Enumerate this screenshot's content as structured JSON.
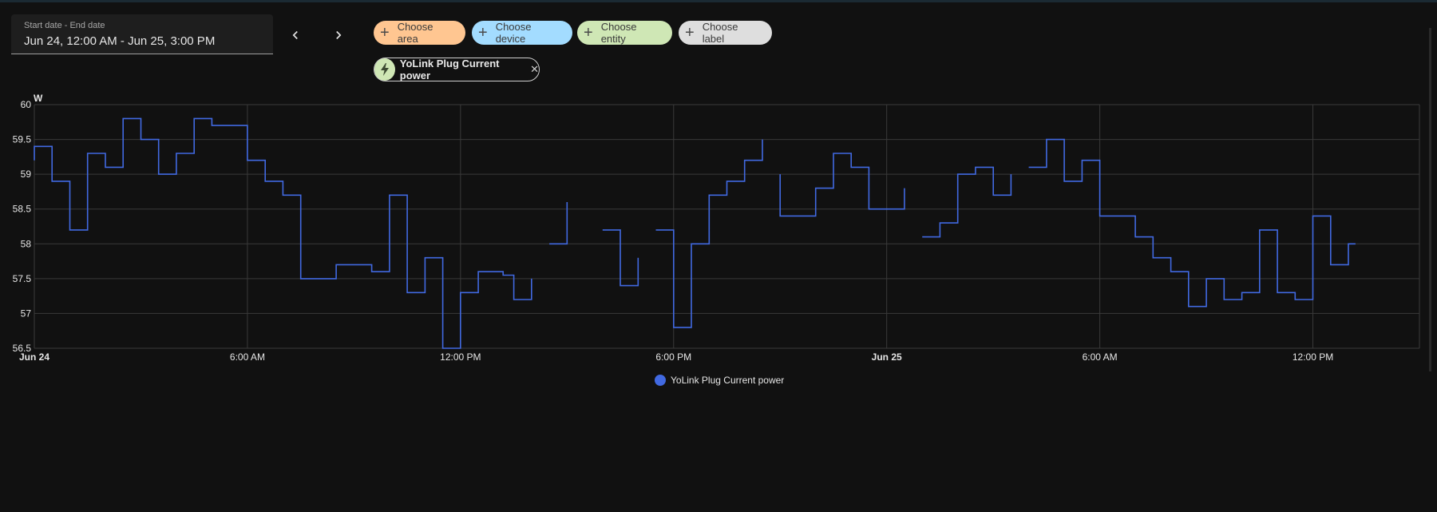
{
  "date_picker": {
    "label": "Start date - End date",
    "value": "Jun 24, 12:00 AM - Jun 25, 3:00 PM"
  },
  "nav": {
    "prev_icon": "chevron-left-icon",
    "next_icon": "chevron-right-icon"
  },
  "target_chips": [
    {
      "label": "Choose area",
      "icon": "plus-icon",
      "color": "#ffc691"
    },
    {
      "label": "Choose device",
      "icon": "plus-icon",
      "color": "#a3dcff"
    },
    {
      "label": "Choose entity",
      "icon": "plus-icon",
      "color": "#cfe7b5"
    },
    {
      "label": "Choose label",
      "icon": "plus-icon",
      "color": "#dedede"
    }
  ],
  "selected_entity": {
    "name": "YoLink Plug Current power",
    "icon": "lightning-bolt-icon",
    "close_icon": "close-icon"
  },
  "chart_data": {
    "type": "line",
    "step": true,
    "ylabel": "W",
    "ylim": [
      56.5,
      60
    ],
    "yticks": [
      "60",
      "59.5",
      "59",
      "58.5",
      "58",
      "57.5",
      "57",
      "56.5"
    ],
    "xlim": [
      0,
      39
    ],
    "xticks": [
      {
        "x": 0,
        "label": "Jun 24",
        "bold": true
      },
      {
        "x": 6,
        "label": "6:00 AM",
        "bold": false
      },
      {
        "x": 12,
        "label": "12:00 PM",
        "bold": false
      },
      {
        "x": 18,
        "label": "6:00 PM",
        "bold": false
      },
      {
        "x": 24,
        "label": "Jun 25",
        "bold": true
      },
      {
        "x": 30,
        "label": "6:00 AM",
        "bold": false
      },
      {
        "x": 36,
        "label": "12:00 PM",
        "bold": false
      }
    ],
    "grid": true,
    "color": "#4169e1",
    "series": [
      {
        "name": "YoLink Plug Current power",
        "segments": [
          [
            [
              0,
              59.2
            ],
            [
              0,
              59.4
            ],
            [
              0.5,
              59.4
            ],
            [
              0.5,
              58.9
            ],
            [
              1.0,
              58.9
            ],
            [
              1.0,
              58.2
            ],
            [
              1.5,
              58.2
            ],
            [
              1.5,
              59.3
            ],
            [
              2.0,
              59.3
            ],
            [
              2.0,
              59.1
            ],
            [
              2.5,
              59.1
            ],
            [
              2.5,
              59.8
            ],
            [
              3.0,
              59.8
            ],
            [
              3.0,
              59.5
            ],
            [
              3.5,
              59.5
            ],
            [
              3.5,
              59.0
            ],
            [
              4.0,
              59.0
            ],
            [
              4.0,
              59.3
            ],
            [
              4.5,
              59.3
            ],
            [
              4.5,
              59.8
            ],
            [
              5.0,
              59.8
            ],
            [
              5.0,
              59.7
            ],
            [
              6.0,
              59.7
            ],
            [
              6.0,
              59.2
            ],
            [
              6.5,
              59.2
            ],
            [
              6.5,
              58.9
            ],
            [
              7.0,
              58.9
            ],
            [
              7.0,
              58.7
            ],
            [
              7.5,
              58.7
            ],
            [
              7.5,
              57.5
            ],
            [
              8.5,
              57.5
            ],
            [
              8.5,
              57.7
            ],
            [
              9.5,
              57.7
            ],
            [
              9.5,
              57.6
            ],
            [
              10.0,
              57.6
            ],
            [
              10.0,
              58.7
            ],
            [
              10.5,
              58.7
            ],
            [
              10.5,
              57.3
            ],
            [
              11.0,
              57.3
            ],
            [
              11.0,
              57.8
            ],
            [
              11.5,
              57.8
            ],
            [
              11.5,
              56.5
            ],
            [
              12.0,
              56.5
            ],
            [
              12.0,
              57.3
            ],
            [
              12.5,
              57.3
            ],
            [
              12.5,
              57.6
            ],
            [
              13.2,
              57.6
            ],
            [
              13.2,
              57.55
            ],
            [
              13.5,
              57.55
            ],
            [
              13.5,
              57.2
            ],
            [
              14.0,
              57.2
            ],
            [
              14.0,
              57.5
            ]
          ],
          [
            [
              14.5,
              58.0
            ],
            [
              15.0,
              58.0
            ],
            [
              15.0,
              58.6
            ]
          ],
          [
            [
              16.0,
              58.2
            ],
            [
              16.5,
              58.2
            ],
            [
              16.5,
              57.4
            ],
            [
              17.0,
              57.4
            ],
            [
              17.0,
              57.8
            ]
          ],
          [
            [
              17.5,
              58.2
            ],
            [
              18.0,
              58.2
            ],
            [
              18.0,
              56.8
            ],
            [
              18.5,
              56.8
            ],
            [
              18.5,
              58.0
            ],
            [
              19.0,
              58.0
            ],
            [
              19.0,
              58.7
            ],
            [
              19.5,
              58.7
            ],
            [
              19.5,
              58.9
            ],
            [
              20.0,
              58.9
            ],
            [
              20.0,
              59.2
            ],
            [
              20.5,
              59.2
            ],
            [
              20.5,
              59.5
            ]
          ],
          [
            [
              21.0,
              59.0
            ],
            [
              21.0,
              58.4
            ],
            [
              22.0,
              58.4
            ],
            [
              22.0,
              58.8
            ],
            [
              22.5,
              58.8
            ],
            [
              22.5,
              59.3
            ],
            [
              23.0,
              59.3
            ],
            [
              23.0,
              59.1
            ],
            [
              23.5,
              59.1
            ],
            [
              23.5,
              58.5
            ],
            [
              24.5,
              58.5
            ],
            [
              24.5,
              58.8
            ]
          ],
          [
            [
              25.0,
              58.1
            ],
            [
              25.5,
              58.1
            ],
            [
              25.5,
              58.3
            ],
            [
              26.0,
              58.3
            ],
            [
              26.0,
              59.0
            ],
            [
              26.5,
              59.0
            ],
            [
              26.5,
              59.1
            ],
            [
              27.0,
              59.1
            ],
            [
              27.0,
              58.7
            ],
            [
              27.5,
              58.7
            ],
            [
              27.5,
              59.0
            ]
          ],
          [
            [
              28.0,
              59.1
            ],
            [
              28.5,
              59.1
            ],
            [
              28.5,
              59.5
            ],
            [
              29.0,
              59.5
            ],
            [
              29.0,
              58.9
            ],
            [
              29.5,
              58.9
            ],
            [
              29.5,
              59.2
            ],
            [
              30.0,
              59.2
            ],
            [
              30.0,
              58.4
            ],
            [
              31.0,
              58.4
            ],
            [
              31.0,
              58.1
            ],
            [
              31.5,
              58.1
            ],
            [
              31.5,
              57.8
            ],
            [
              32.0,
              57.8
            ],
            [
              32.0,
              57.6
            ],
            [
              32.5,
              57.6
            ],
            [
              32.5,
              57.1
            ],
            [
              33.0,
              57.1
            ],
            [
              33.0,
              57.5
            ],
            [
              33.5,
              57.5
            ],
            [
              33.5,
              57.2
            ],
            [
              34.0,
              57.2
            ],
            [
              34.0,
              57.3
            ],
            [
              34.5,
              57.3
            ],
            [
              34.5,
              58.2
            ],
            [
              35.0,
              58.2
            ],
            [
              35.0,
              57.3
            ],
            [
              35.5,
              57.3
            ],
            [
              35.5,
              57.2
            ],
            [
              36.0,
              57.2
            ],
            [
              36.0,
              58.4
            ],
            [
              36.5,
              58.4
            ],
            [
              36.5,
              57.7
            ],
            [
              37.0,
              57.7
            ],
            [
              37.0,
              58.0
            ],
            [
              37.2,
              58.0
            ]
          ]
        ]
      }
    ]
  },
  "legend": {
    "label": "YoLink Plug Current power",
    "color": "#4169e1"
  }
}
